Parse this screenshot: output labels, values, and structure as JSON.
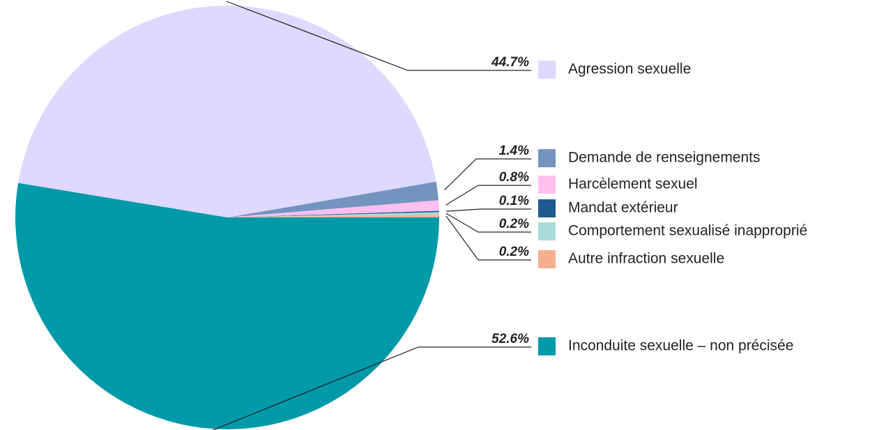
{
  "chart_data": {
    "type": "pie",
    "categories": [
      "Agression sexuelle",
      "Demande de renseignements",
      "Harcèlement sexuel",
      "Mandat extérieur",
      "Comportement sexualisé inapproprié",
      "Autre infraction sexuelle",
      "Inconduite sexuelle – non précisée"
    ],
    "values": [
      44.7,
      1.4,
      0.8,
      0.1,
      0.2,
      0.2,
      52.6
    ],
    "value_labels": [
      "44.7%",
      "1.4%",
      "0.8%",
      "0.1%",
      "0.2%",
      "0.2%",
      "52.6%"
    ],
    "colors": [
      "#e0d8ff",
      "#7394bf",
      "#ffc0f0",
      "#1f5a8f",
      "#a8dcd8",
      "#f5b090",
      "#0099a8"
    ]
  }
}
